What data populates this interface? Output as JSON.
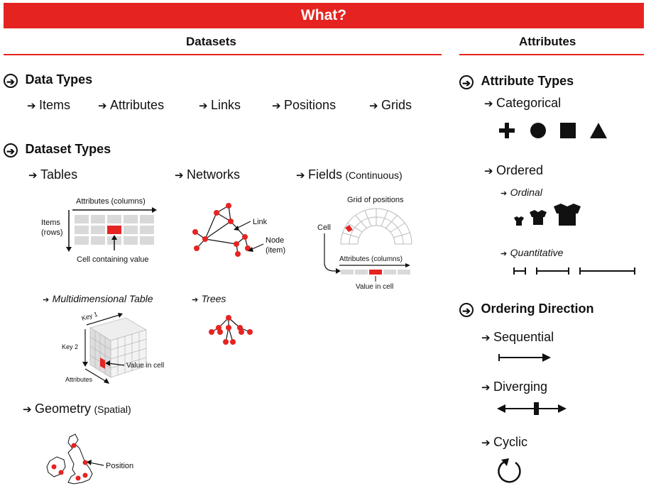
{
  "banner": {
    "title": "What?"
  },
  "datasets": {
    "header": "Datasets",
    "data_types": {
      "title": "Data Types",
      "items": [
        "Items",
        "Attributes",
        "Links",
        "Positions",
        "Grids"
      ]
    },
    "dataset_types": {
      "title": "Dataset Types",
      "tables": {
        "label": "Tables",
        "attr_label": "Attributes (columns)",
        "items_label_1": "Items",
        "items_label_2": "(rows)",
        "cell_label": "Cell containing value"
      },
      "networks": {
        "label": "Networks",
        "link_label": "Link",
        "node_label_1": "Node",
        "node_label_2": "(item)"
      },
      "fields": {
        "label": "Fields",
        "qualifier": "(Continuous)",
        "grid_label": "Grid of positions",
        "cell_label": "Cell",
        "attr_label": "Attributes (columns)",
        "value_label": "Value in cell"
      },
      "multidim": {
        "label": "Multidimensional Table",
        "key1": "Key 1",
        "key2": "Key 2",
        "attrs": "Attributes",
        "value_label": "Value in cell"
      },
      "trees": {
        "label": "Trees"
      },
      "geometry": {
        "label": "Geometry",
        "qualifier": "(Spatial)",
        "position_label": "Position"
      }
    }
  },
  "attributes": {
    "header": "Attributes",
    "attribute_types": {
      "title": "Attribute Types",
      "categorical": "Categorical",
      "ordered": "Ordered",
      "ordinal": "Ordinal",
      "quantitative": "Quantitative"
    },
    "ordering_direction": {
      "title": "Ordering Direction",
      "sequential": "Sequential",
      "diverging": "Diverging",
      "cyclic": "Cyclic"
    }
  },
  "colors": {
    "accent": "#e52421",
    "ink": "#111111",
    "grid": "#d9d9d9"
  }
}
